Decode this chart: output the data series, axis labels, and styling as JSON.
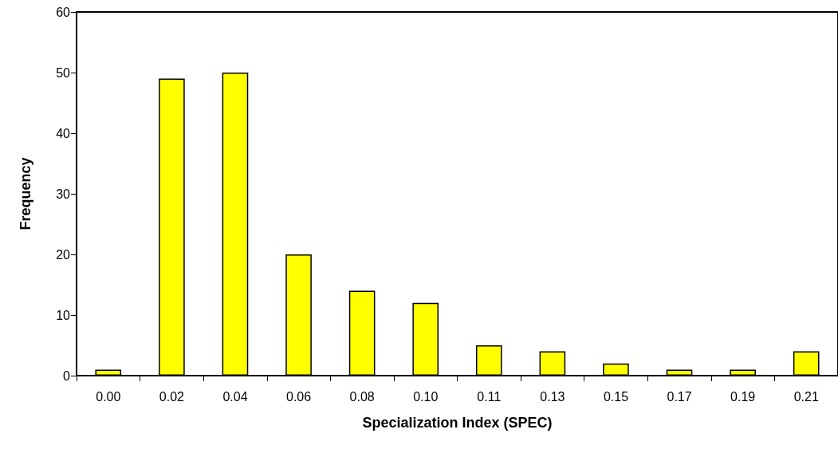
{
  "chart_data": {
    "type": "bar",
    "xlabel": "Specialization Index (SPEC)",
    "ylabel": "Frequency",
    "categories": [
      "0.00",
      "0.02",
      "0.04",
      "0.06",
      "0.08",
      "0.10",
      "0.11",
      "0.13",
      "0.15",
      "0.17",
      "0.19",
      "0.21"
    ],
    "values": [
      1,
      49,
      50,
      20,
      14,
      12,
      5,
      4,
      2,
      1,
      1,
      4
    ],
    "color": "#ffff00",
    "ylim": [
      0,
      60
    ],
    "yticks": [
      0,
      10,
      20,
      30,
      40,
      50,
      60
    ],
    "grid": false
  }
}
